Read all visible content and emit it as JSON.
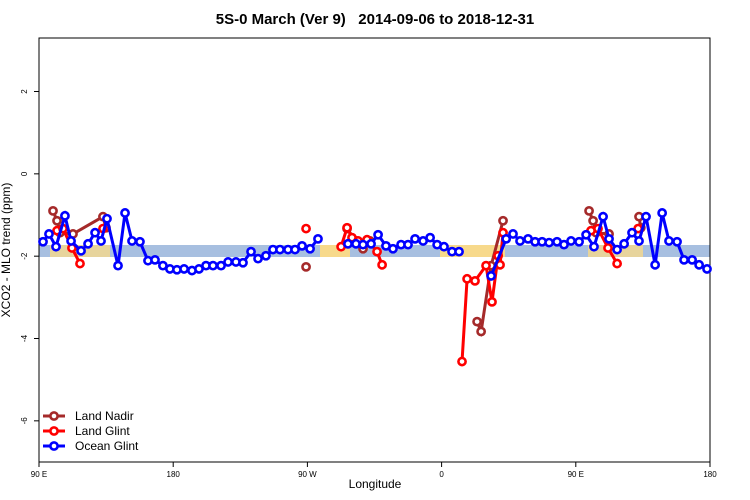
{
  "chart_data": {
    "type": "line",
    "title": "5S-0 March (Ver 9)   2014-09-06 to 2018-12-31",
    "x_label": "Longitude",
    "y_label": "XCO2 - MLO trend (ppm)",
    "xlim": [
      90,
      540
    ],
    "ylim": [
      -7,
      3.3
    ],
    "xticks": [
      {
        "value": 90,
        "label": "90 E"
      },
      180,
      {
        "value": 270,
        "label": "90 W"
      },
      {
        "value": 360,
        "label": "0"
      },
      {
        "value": 450,
        "label": "90 E"
      },
      {
        "value": 540,
        "label": "180"
      }
    ],
    "yticks": [
      2,
      0,
      -2,
      -4,
      -6
    ],
    "legend": "bottom-left",
    "series": [
      {
        "name": "Land Nadir",
        "color": "#a52a2a",
        "x": [
          99.4,
          102.1,
          104.1,
          112.8,
          132.9,
          134.9,
          null,
          269.1,
          null,
          296.6,
          302.6,
          307.3,
          312,
          null,
          383.8,
          386.5,
          393.2,
          401.2,
          null,
          458.9,
          461.6,
          463.6,
          472.3,
          null,
          492.4,
          493.6
        ],
        "values": [
          -0.9,
          -1.14,
          -1.43,
          -1.46,
          -1.04,
          -1.31,
          null,
          -2.26,
          null,
          -1.33,
          -1.63,
          -1.82,
          -1.63,
          null,
          -3.59,
          -3.83,
          -2.23,
          -1.14,
          null,
          -0.9,
          -1.14,
          -1.43,
          -1.46,
          null,
          -1.04,
          -1.31
        ]
      },
      {
        "name": "Land Glint",
        "color": "#ff0000",
        "x": [
          102.1,
          106.1,
          112.1,
          117.5,
          null,
          132.9,
          null,
          269.1,
          null,
          292.6,
          296.6,
          299.9,
          304,
          310,
          316.7,
          320.1,
          null,
          373.7,
          377.1,
          382.4,
          389.8,
          393.8,
          397.9,
          399.2,
          401.2,
          null,
          460.2,
          464.9,
          471.6,
          477.7,
          null,
          491.8
        ],
        "values": [
          -1.38,
          -1.33,
          -1.8,
          -2.18,
          null,
          -1.33,
          null,
          -1.33,
          null,
          -1.77,
          -1.31,
          -1.55,
          -1.63,
          -1.6,
          -1.89,
          -2.21,
          null,
          -4.56,
          -2.55,
          -2.6,
          -2.23,
          -3.11,
          -1.99,
          -2.21,
          -1.43,
          null,
          -1.38,
          -1.33,
          -1.8,
          -2.18,
          null,
          -1.33
        ]
      },
      {
        "name": "Ocean Glint",
        "color": "#0000ff",
        "x": [
          92.7,
          96.7,
          101.4,
          107.4,
          111.5,
          118.2,
          122.9,
          127.6,
          131.6,
          135.6,
          143,
          147.7,
          152.4,
          157.7,
          163.1,
          167.8,
          173.1,
          177.8,
          182.5,
          187.3,
          192.6,
          197.3,
          202,
          206.7,
          212.1,
          216.8,
          222.1,
          226.8,
          232.2,
          236.9,
          242.2,
          246.9,
          251.6,
          257,
          261.7,
          266.4,
          271.8,
          277.1,
          null,
          297.2,
          302.6,
          307.3,
          312.7,
          317.4,
          322.7,
          327.4,
          332.8,
          337.5,
          342.2,
          347.6,
          352.3,
          357,
          361.6,
          367,
          371.7,
          null,
          393.2,
          403.3,
          407.9,
          412.6,
          418,
          422.7,
          427.4,
          432.1,
          437.4,
          442.1,
          446.8,
          452.2,
          456.9,
          462.2,
          468.3,
          472.3,
          477.7,
          482.4,
          487.7,
          492.4,
          497.1,
          503.2,
          507.9,
          512.5,
          517.9,
          522.6,
          528,
          532.7,
          538
        ],
        "values": [
          -1.65,
          -1.46,
          -1.77,
          -1.02,
          -1.63,
          -1.87,
          -1.7,
          -1.43,
          -1.63,
          -1.09,
          -2.23,
          -0.95,
          -1.63,
          -1.65,
          -2.11,
          -2.09,
          -2.23,
          -2.31,
          -2.33,
          -2.31,
          -2.35,
          -2.31,
          -2.23,
          -2.23,
          -2.23,
          -2.14,
          -2.14,
          -2.16,
          -1.89,
          -2.06,
          -1.99,
          -1.84,
          -1.84,
          -1.84,
          -1.84,
          -1.75,
          -1.82,
          -1.58,
          null,
          -1.7,
          -1.7,
          -1.72,
          -1.7,
          -1.48,
          -1.75,
          -1.82,
          -1.72,
          -1.72,
          -1.58,
          -1.63,
          -1.55,
          -1.72,
          -1.77,
          -1.89,
          -1.89,
          null,
          -2.48,
          -1.58,
          -1.46,
          -1.63,
          -1.58,
          -1.65,
          -1.65,
          -1.67,
          -1.65,
          -1.72,
          -1.63,
          -1.65,
          -1.48,
          -1.77,
          -1.04,
          -1.58,
          -1.84,
          -1.7,
          -1.43,
          -1.63,
          -1.04,
          -2.21,
          -0.95,
          -1.63,
          -1.65,
          -2.09,
          -2.09,
          -2.21,
          -2.31
        ]
      }
    ]
  }
}
